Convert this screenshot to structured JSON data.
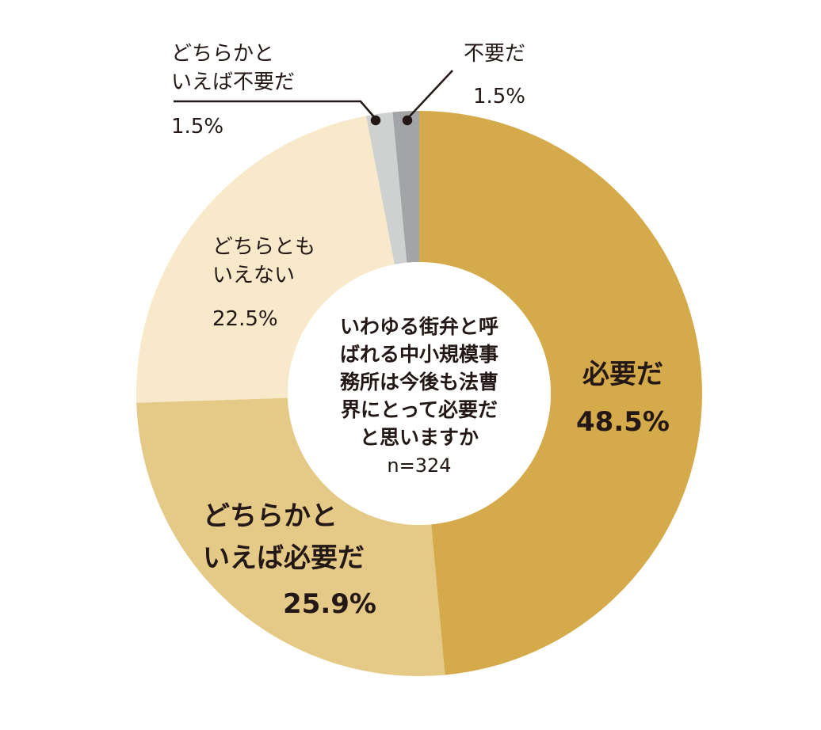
{
  "chart_data": {
    "type": "pie",
    "variant": "donut",
    "center": {
      "question_lines": [
        "いわゆる街弁と呼",
        "ばれる中小規模事",
        "務所は今後も法曹",
        "界にとって必要だ",
        "と思いますか"
      ],
      "n_label": "n=324"
    },
    "slices": [
      {
        "label_lines": [
          "必要だ"
        ],
        "value": 48.5,
        "value_label": "48.5%",
        "color": "#d4aa4a"
      },
      {
        "label_lines": [
          "どちらかと",
          "いえば必要だ"
        ],
        "value": 25.9,
        "value_label": "25.9%",
        "color": "#e5c987"
      },
      {
        "label_lines": [
          "どちらとも",
          "いえない"
        ],
        "value": 22.5,
        "value_label": "22.5%",
        "color": "#f7e9c9"
      },
      {
        "label_lines": [
          "どちらかと",
          "いえば不要だ"
        ],
        "value": 1.5,
        "value_label": "1.5%",
        "color": "#cfd1d0"
      },
      {
        "label_lines": [
          "不要だ"
        ],
        "value": 1.5,
        "value_label": "1.5%",
        "color": "#a3a4a6"
      }
    ],
    "start_angle_deg": 0,
    "direction": "clockwise"
  }
}
